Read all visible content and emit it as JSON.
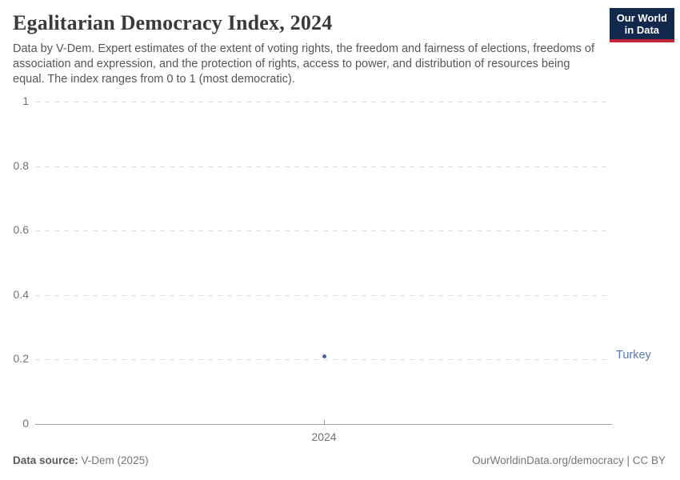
{
  "header": {
    "title": "Egalitarian Democracy Index, 2024",
    "subtitle": "Data by V-Dem. Expert estimates of the extent of voting rights, the freedom and fairness of elections, freedoms of association and expression, and the protection of rights, access to power, and distribution of resources being equal. The index ranges from 0 to 1 (most democratic).",
    "logo_line1": "Our World",
    "logo_line2": "in Data"
  },
  "chart_data": {
    "type": "scatter",
    "title": "Egalitarian Democracy Index, 2024",
    "x": [
      2024
    ],
    "xticklabels": [
      "2024"
    ],
    "series": [
      {
        "name": "Turkey",
        "values": [
          0.21
        ],
        "color": "#4b6a9b",
        "label_color": "#5878ab"
      }
    ],
    "xlabel": "",
    "ylabel": "",
    "ylim": [
      0,
      1
    ],
    "yticks": [
      0,
      0.2,
      0.4,
      0.6,
      0.8,
      1
    ],
    "grid": "horizontal-dashed",
    "legend": "entity-label-right"
  },
  "footer": {
    "source_label": "Data source:",
    "source_value": "V-Dem (2025)",
    "credit": "OurWorldinData.org/democracy | CC BY"
  },
  "colors": {
    "logo_navy": "#12294d",
    "logo_red": "#c0283a",
    "grid": "#dddddd",
    "axis": "#a1a1a1",
    "tick_text": "#737373",
    "point": "#4b6a9b",
    "entity_label": "#5878ab"
  }
}
